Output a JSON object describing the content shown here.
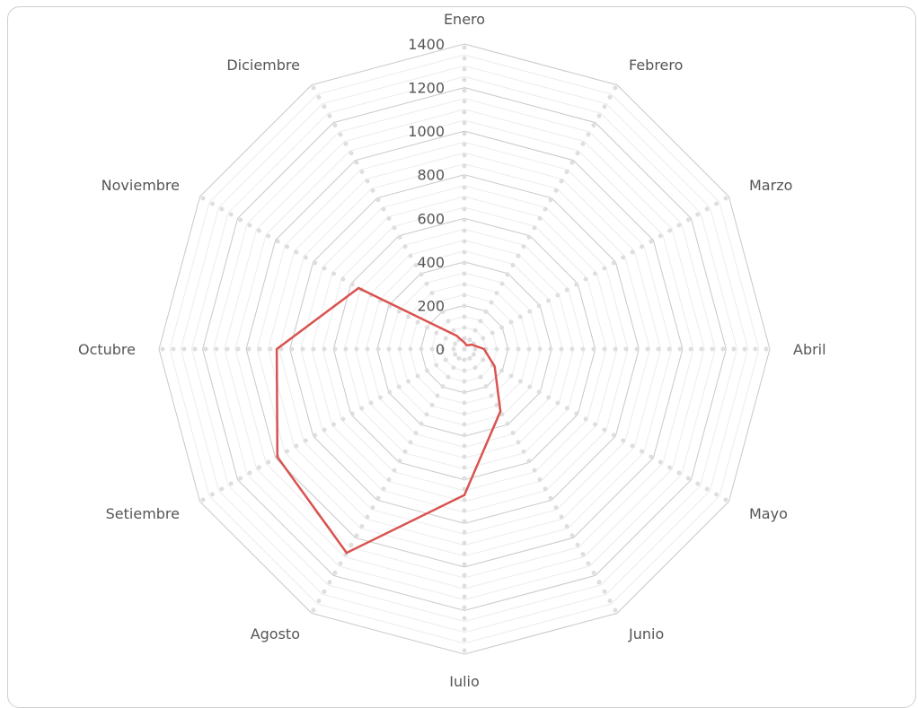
{
  "chart_data": {
    "type": "radar",
    "categories": [
      "Enero",
      "Febrero",
      "Marzo",
      "Abril",
      "Mayo",
      "Junio",
      "Julio",
      "Agosto",
      "Setiembre",
      "Octubre",
      "Noviembre",
      "Diciembre"
    ],
    "series": [
      {
        "values": [
          30,
          20,
          40,
          90,
          160,
          330,
          670,
          1080,
          990,
          860,
          560,
          70
        ]
      }
    ],
    "ticks": [
      0,
      200,
      400,
      600,
      800,
      1000,
      1200,
      1400
    ],
    "rlim": [
      0,
      1400
    ],
    "grid": true,
    "colors": {
      "series": "#d9534f",
      "grid": "#c8c8c8",
      "minorGrid": "#ececec",
      "label": "#555555"
    }
  }
}
